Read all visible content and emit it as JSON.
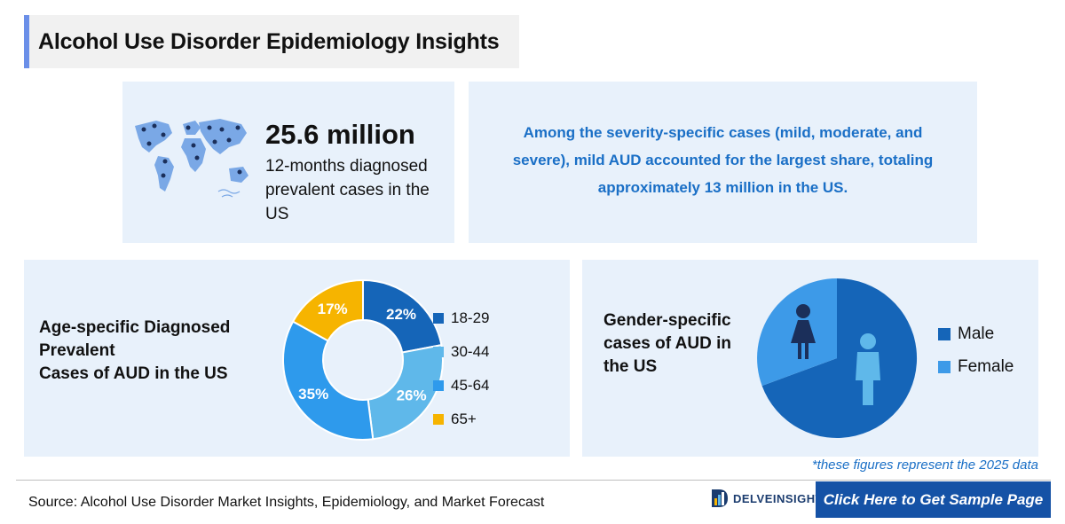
{
  "header": {
    "title": "Alcohol Use Disorder Epidemiology Insights"
  },
  "stat": {
    "value": "25.6 million",
    "description": "12-months diagnosed prevalent cases in the US"
  },
  "insight": {
    "text": "Among the severity-specific cases (mild, moderate, and severe), mild AUD accounted for the largest share, totaling approximately 13 million in the US."
  },
  "age_section": {
    "title_lines": [
      "Age-specific Diagnosed",
      "Prevalent",
      "Cases of AUD in the US"
    ]
  },
  "gender_section": {
    "title_lines": [
      "Gender-specific",
      "cases of AUD in",
      "the US"
    ]
  },
  "chart_data": [
    {
      "type": "pie",
      "variant": "donut",
      "categories": [
        "18-29",
        "30-44",
        "45-64",
        "65+"
      ],
      "values": [
        22,
        26,
        35,
        17
      ],
      "labels": [
        "22%",
        "26%",
        "35%",
        "17%"
      ],
      "colors": [
        "#1565b8",
        "#5fb8ea",
        "#2e9aec",
        "#f6b400"
      ],
      "legend": "right"
    },
    {
      "type": "pie",
      "categories": [
        "Male",
        "Female"
      ],
      "colors": [
        "#1565b8",
        "#3d9ae8"
      ],
      "legend": "right"
    }
  ],
  "icons": {
    "map": "world-map-icon",
    "female": "female-person-icon",
    "male": "male-person-icon",
    "logo": "delveinsight-logo-icon"
  },
  "footnote": "*these figures represent the 2025 data",
  "source": "Source: Alcohol Use Disorder Market Insights, Epidemiology, and Market Forecast",
  "brand": {
    "logo_text": "DELVEINSIGHT"
  },
  "cta": {
    "label": "Click Here to Get Sample Page"
  }
}
